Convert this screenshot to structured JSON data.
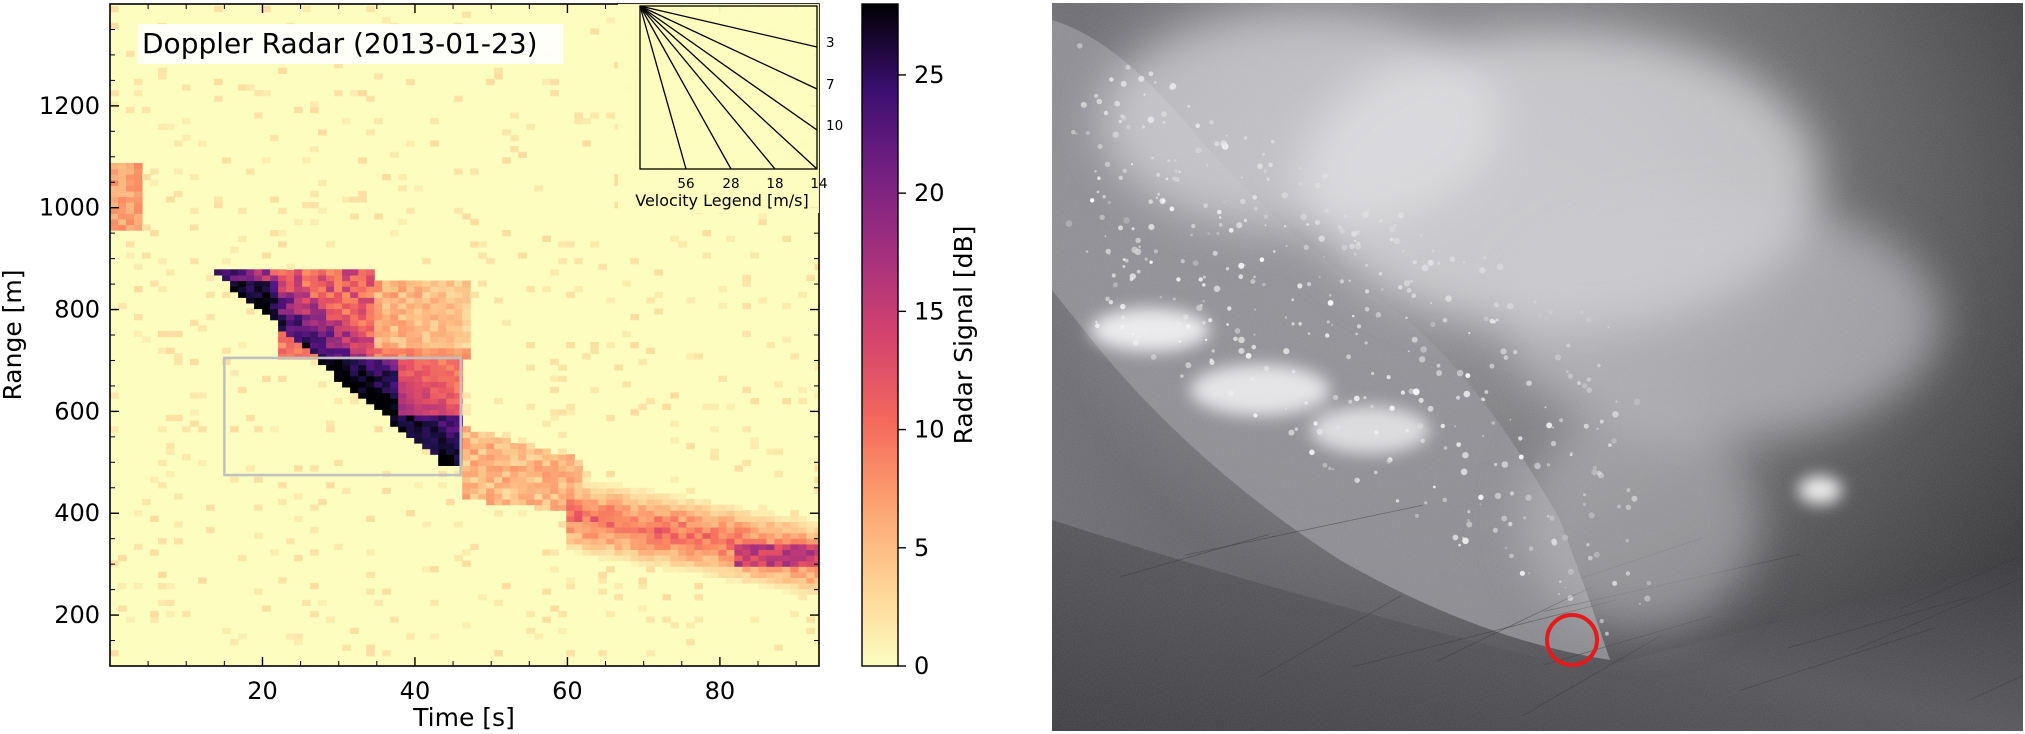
{
  "chart_data": [
    {
      "type": "heatmap",
      "title": "Doppler Radar (2013-01-23)",
      "xlabel": "Time [s]",
      "ylabel": "Range [m]",
      "xlim": [
        0,
        93
      ],
      "ylim": [
        100,
        1400
      ],
      "xticks": [
        20,
        40,
        60,
        80
      ],
      "yticks": [
        200,
        400,
        600,
        800,
        1000,
        1200
      ],
      "colorbar": {
        "label": "Radar Signal [dB]",
        "range": [
          0,
          28
        ],
        "ticks": [
          0,
          5,
          10,
          15,
          20,
          25
        ],
        "colormap": "magma_r",
        "colors": [
          "#fcfdbf",
          "#fec287",
          "#fb8761",
          "#e85362",
          "#b73779",
          "#822681",
          "#51127c",
          "#1d1147",
          "#000004"
        ]
      },
      "signal_bands": [
        {
          "t": [
            0,
            4
          ],
          "range": [
            960,
            1090
          ],
          "db": 7
        },
        {
          "t": [
            4,
            35
          ],
          "range_start": [
            880,
            700
          ],
          "range_end": [
            860,
            720
          ],
          "peak_db": 27
        },
        {
          "t": [
            15,
            46
          ],
          "range": [
            490,
            700
          ],
          "peak_db": 28
        },
        {
          "t": [
            46,
            60
          ],
          "range": [
            400,
            560
          ],
          "db": 4
        },
        {
          "t": [
            60,
            93
          ],
          "range": [
            260,
            480
          ],
          "peak_db": 14
        }
      ],
      "box": {
        "t": [
          15,
          46
        ],
        "range": [
          475,
          705
        ]
      },
      "velocity_legend": {
        "caption": "Velocity Legend [m/s]",
        "right_labels": [
          "3",
          "7",
          "10"
        ],
        "bottom_labels": [
          "56",
          "28",
          "18",
          "14"
        ]
      }
    }
  ],
  "photo": {
    "subject": "avalanche-photo"
  }
}
